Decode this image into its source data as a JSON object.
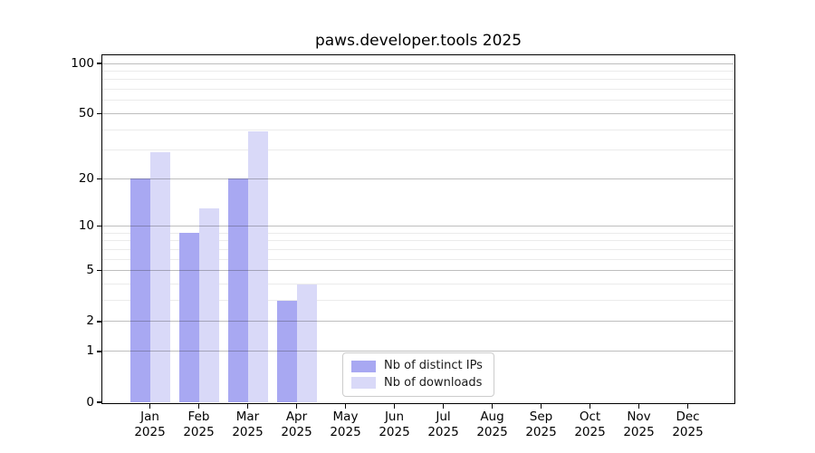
{
  "title": "paws.developer.tools 2025",
  "chart_data": {
    "type": "bar",
    "title": "paws.developer.tools 2025",
    "categories": [
      {
        "month": "Jan",
        "year": "2025"
      },
      {
        "month": "Feb",
        "year": "2025"
      },
      {
        "month": "Mar",
        "year": "2025"
      },
      {
        "month": "Apr",
        "year": "2025"
      },
      {
        "month": "May",
        "year": "2025"
      },
      {
        "month": "Jun",
        "year": "2025"
      },
      {
        "month": "Jul",
        "year": "2025"
      },
      {
        "month": "Aug",
        "year": "2025"
      },
      {
        "month": "Sep",
        "year": "2025"
      },
      {
        "month": "Oct",
        "year": "2025"
      },
      {
        "month": "Nov",
        "year": "2025"
      },
      {
        "month": "Dec",
        "year": "2025"
      }
    ],
    "series": [
      {
        "name": "Nb of distinct IPs",
        "color": "#a8a8f2",
        "values": [
          20,
          9,
          20,
          3,
          0,
          0,
          0,
          0,
          0,
          0,
          0,
          0
        ]
      },
      {
        "name": "Nb of downloads",
        "color": "#d9d9f8",
        "values": [
          29,
          13,
          39,
          4,
          0,
          0,
          0,
          0,
          0,
          0,
          0,
          0
        ]
      }
    ],
    "yscale": "log1p",
    "ylim": [
      0,
      112
    ],
    "yticks": [
      0,
      1,
      2,
      5,
      10,
      20,
      50,
      100
    ],
    "minor_yticks": [
      3,
      4,
      6,
      7,
      8,
      9,
      30,
      40,
      60,
      70,
      80,
      90
    ],
    "grid": true,
    "legend_position": "lower center",
    "spine_color": "#000000",
    "background_color": "#ffffff"
  }
}
